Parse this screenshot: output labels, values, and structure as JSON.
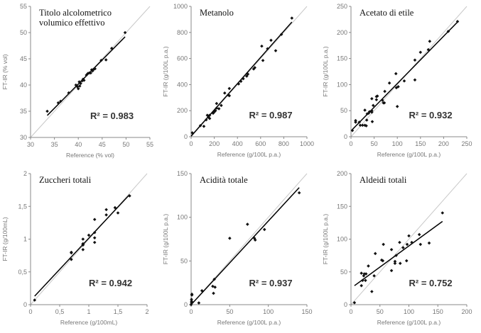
{
  "colors": {
    "axis": "#888888",
    "identity": "#c8c8c8",
    "points": "#111111",
    "fit": "#000000"
  },
  "chart_data": [
    {
      "type": "scatter",
      "title_lines": [
        "Titolo alcolometrico",
        "volumico effettivo"
      ],
      "xlabel": "Reference (% vol)",
      "ylabel": "FT-IR (% vol)",
      "xlim": [
        30,
        55
      ],
      "ylim": [
        30,
        55
      ],
      "xticks": [
        30,
        35,
        40,
        45,
        50,
        55
      ],
      "yticks": [
        30,
        35,
        40,
        45,
        50,
        55
      ],
      "xtick_labels": [
        "30",
        "35",
        "40",
        "45",
        "50",
        "55"
      ],
      "ytick_labels": [
        "30",
        "35",
        "40",
        "45",
        "50",
        "55"
      ],
      "r2": "R² = 0.983",
      "fit": [
        [
          33.5,
          34.2
        ],
        [
          49.8,
          49.2
        ]
      ],
      "points": [
        [
          33.5,
          35
        ],
        [
          35.8,
          36.6
        ],
        [
          36.3,
          36.9
        ],
        [
          38,
          38.5
        ],
        [
          39.5,
          40
        ],
        [
          39.8,
          39.7
        ],
        [
          40,
          39.3
        ],
        [
          40.2,
          40.6
        ],
        [
          40.3,
          39.8
        ],
        [
          40.5,
          40.3
        ],
        [
          40.8,
          40.8
        ],
        [
          41,
          41.1
        ],
        [
          41.2,
          40.9
        ],
        [
          41.7,
          41.9
        ],
        [
          42,
          42.2
        ],
        [
          42.3,
          42.3
        ],
        [
          42.6,
          42.3
        ],
        [
          42.8,
          42.9
        ],
        [
          43,
          42.7
        ],
        [
          43.2,
          43
        ],
        [
          43.5,
          43.1
        ],
        [
          44.8,
          44.7
        ],
        [
          45.8,
          44.8
        ],
        [
          47,
          47
        ],
        [
          49.8,
          50
        ]
      ]
    },
    {
      "type": "scatter",
      "title_lines": [
        "Metanolo"
      ],
      "xlabel": "Reference (g/100L p.a.)",
      "ylabel": "FT-IR (g/100L p.a.)",
      "xlim": [
        0,
        1000
      ],
      "ylim": [
        0,
        1000
      ],
      "xticks": [
        0,
        200,
        400,
        600,
        800,
        1000
      ],
      "yticks": [
        0,
        200,
        400,
        600,
        800,
        1000
      ],
      "xtick_labels": [
        "0",
        "200",
        "400",
        "600",
        "800",
        "1000"
      ],
      "ytick_labels": [
        "0",
        "200",
        "400",
        "600",
        "800",
        "1000"
      ],
      "r2": "R² = 0.987",
      "fit": [
        [
          0,
          5
        ],
        [
          870,
          880
        ]
      ],
      "points": [
        [
          10,
          30
        ],
        [
          80,
          85
        ],
        [
          110,
          80
        ],
        [
          130,
          130
        ],
        [
          140,
          165
        ],
        [
          150,
          150
        ],
        [
          160,
          140
        ],
        [
          160,
          165
        ],
        [
          190,
          180
        ],
        [
          200,
          190
        ],
        [
          210,
          200
        ],
        [
          220,
          255
        ],
        [
          220,
          220
        ],
        [
          240,
          215
        ],
        [
          260,
          240
        ],
        [
          290,
          335
        ],
        [
          320,
          320
        ],
        [
          330,
          370
        ],
        [
          330,
          315
        ],
        [
          410,
          405
        ],
        [
          430,
          425
        ],
        [
          450,
          445
        ],
        [
          480,
          465
        ],
        [
          490,
          480
        ],
        [
          540,
          520
        ],
        [
          550,
          530
        ],
        [
          610,
          695
        ],
        [
          620,
          585
        ],
        [
          660,
          675
        ],
        [
          690,
          740
        ],
        [
          730,
          660
        ],
        [
          780,
          785
        ],
        [
          870,
          910
        ]
      ]
    },
    {
      "type": "scatter",
      "title_lines": [
        "Acetato di etile"
      ],
      "xlabel": "Reference  (g/100L p.a.)",
      "ylabel": "FT-IR  (g/100L p.a.)",
      "xlim": [
        0,
        250
      ],
      "ylim": [
        0,
        250
      ],
      "xticks": [
        0,
        50,
        100,
        150,
        200,
        250
      ],
      "yticks": [
        0,
        50,
        100,
        150,
        200,
        250
      ],
      "xtick_labels": [
        "0",
        "50",
        "100",
        "150",
        "200",
        "250"
      ],
      "ytick_labels": [
        "0",
        "50",
        "100",
        "150",
        "200",
        "250"
      ],
      "r2": "R² = 0.932",
      "fit": [
        [
          2,
          13
        ],
        [
          230,
          220
        ]
      ],
      "points": [
        [
          3,
          12
        ],
        [
          10,
          28
        ],
        [
          10,
          31
        ],
        [
          18,
          28
        ],
        [
          20,
          22
        ],
        [
          25,
          22
        ],
        [
          30,
          22
        ],
        [
          33,
          21
        ],
        [
          30,
          51
        ],
        [
          34,
          32
        ],
        [
          35,
          44
        ],
        [
          38,
          45
        ],
        [
          40,
          48
        ],
        [
          45,
          50
        ],
        [
          45,
          47
        ],
        [
          45,
          73
        ],
        [
          46,
          29
        ],
        [
          48,
          60
        ],
        [
          55,
          77
        ],
        [
          55,
          71
        ],
        [
          57,
          78
        ],
        [
          68,
          70
        ],
        [
          70,
          65
        ],
        [
          72,
          65
        ],
        [
          73,
          87
        ],
        [
          83,
          103
        ],
        [
          97,
          121
        ],
        [
          98,
          94
        ],
        [
          100,
          58
        ],
        [
          102,
          96
        ],
        [
          115,
          107
        ],
        [
          138,
          147
        ],
        [
          138,
          109
        ],
        [
          150,
          162
        ],
        [
          167,
          167
        ],
        [
          170,
          183
        ],
        [
          210,
          202
        ],
        [
          230,
          221
        ]
      ]
    },
    {
      "type": "scatter",
      "title_lines": [
        "Zuccheri totali"
      ],
      "xlabel": "Reference (g/100mL)",
      "ylabel": "FT-IR (g/100mL)",
      "xlim": [
        0,
        2
      ],
      "ylim": [
        0,
        2
      ],
      "xticks": [
        0,
        0.5,
        1,
        1.5,
        2
      ],
      "yticks": [
        0,
        0.5,
        1,
        1.5,
        2
      ],
      "xtick_labels": [
        "0",
        "0,5",
        "1",
        "1,5",
        "2"
      ],
      "ytick_labels": [
        "0",
        "0,5",
        "1",
        "1,5",
        "2"
      ],
      "r2": "R² = 0.942",
      "fit": [
        [
          0.07,
          0.13
        ],
        [
          1.7,
          1.68
        ]
      ],
      "points": [
        [
          0.07,
          0.07
        ],
        [
          0.7,
          0.69
        ],
        [
          0.7,
          0.79
        ],
        [
          0.7,
          0.8
        ],
        [
          0.9,
          0.84
        ],
        [
          0.9,
          0.91
        ],
        [
          0.9,
          0.92
        ],
        [
          0.9,
          0.93
        ],
        [
          0.9,
          1.0
        ],
        [
          1.0,
          1.06
        ],
        [
          1.1,
          0.95
        ],
        [
          1.1,
          1.02
        ],
        [
          1.1,
          1.1
        ],
        [
          1.1,
          1.3
        ],
        [
          1.3,
          1.37
        ],
        [
          1.3,
          1.45
        ],
        [
          1.45,
          1.48
        ],
        [
          1.5,
          1.4
        ],
        [
          1.7,
          1.66
        ]
      ]
    },
    {
      "type": "scatter",
      "title_lines": [
        "Acidità totale"
      ],
      "xlabel": "Reference  (g/100L p.a.)",
      "ylabel": "FT-IR  (g/100L p.a.)",
      "xlim": [
        0,
        150
      ],
      "ylim": [
        0,
        150
      ],
      "xticks": [
        0,
        50,
        100,
        150
      ],
      "yticks": [
        0,
        50,
        100,
        150
      ],
      "xtick_labels": [
        "0",
        "50",
        "100",
        "150"
      ],
      "ytick_labels": [
        "0",
        "50",
        "100",
        "150"
      ],
      "r2": "R² = 0.937",
      "fit": [
        [
          0,
          0
        ],
        [
          140,
          134
        ]
      ],
      "points": [
        [
          0,
          0
        ],
        [
          0.5,
          2
        ],
        [
          0.5,
          4
        ],
        [
          0.5,
          6
        ],
        [
          1,
          11
        ],
        [
          1,
          12
        ],
        [
          1,
          3
        ],
        [
          10,
          2
        ],
        [
          14,
          16
        ],
        [
          28,
          21
        ],
        [
          29,
          13
        ],
        [
          30,
          29
        ],
        [
          31,
          20
        ],
        [
          50,
          76
        ],
        [
          73,
          92
        ],
        [
          82,
          76
        ],
        [
          83,
          74
        ],
        [
          95,
          86
        ],
        [
          140,
          128
        ]
      ]
    },
    {
      "type": "scatter",
      "title_lines": [
        "Aldeidi totali"
      ],
      "xlabel": "Reference  (g/100L p.a.)",
      "ylabel": "FT-IR  (g/100L p.a.)",
      "xlim": [
        0,
        200
      ],
      "ylim": [
        0,
        200
      ],
      "xticks": [
        0,
        50,
        100,
        150,
        200
      ],
      "yticks": [
        0,
        50,
        100,
        150,
        200
      ],
      "xtick_labels": [
        "0",
        "50",
        "100",
        "150",
        "200"
      ],
      "ytick_labels": [
        "0",
        "50",
        "100",
        "150",
        "200"
      ],
      "r2": "R² = 0.752",
      "fit": [
        [
          6,
          29
        ],
        [
          158,
          127
        ]
      ],
      "points": [
        [
          6,
          3
        ],
        [
          18,
          48
        ],
        [
          18,
          29
        ],
        [
          20,
          37
        ],
        [
          22,
          44
        ],
        [
          23,
          47
        ],
        [
          25,
          37
        ],
        [
          26,
          47
        ],
        [
          30,
          59
        ],
        [
          36,
          20
        ],
        [
          40,
          44
        ],
        [
          42,
          78
        ],
        [
          53,
          68
        ],
        [
          55,
          67
        ],
        [
          56,
          92
        ],
        [
          70,
          52
        ],
        [
          70,
          84
        ],
        [
          76,
          63
        ],
        [
          76,
          66
        ],
        [
          78,
          75
        ],
        [
          84,
          95
        ],
        [
          85,
          63
        ],
        [
          90,
          87
        ],
        [
          96,
          67
        ],
        [
          97,
          92
        ],
        [
          100,
          105
        ],
        [
          105,
          95
        ],
        [
          118,
          107
        ],
        [
          120,
          92
        ],
        [
          135,
          94
        ],
        [
          158,
          140
        ]
      ]
    }
  ]
}
